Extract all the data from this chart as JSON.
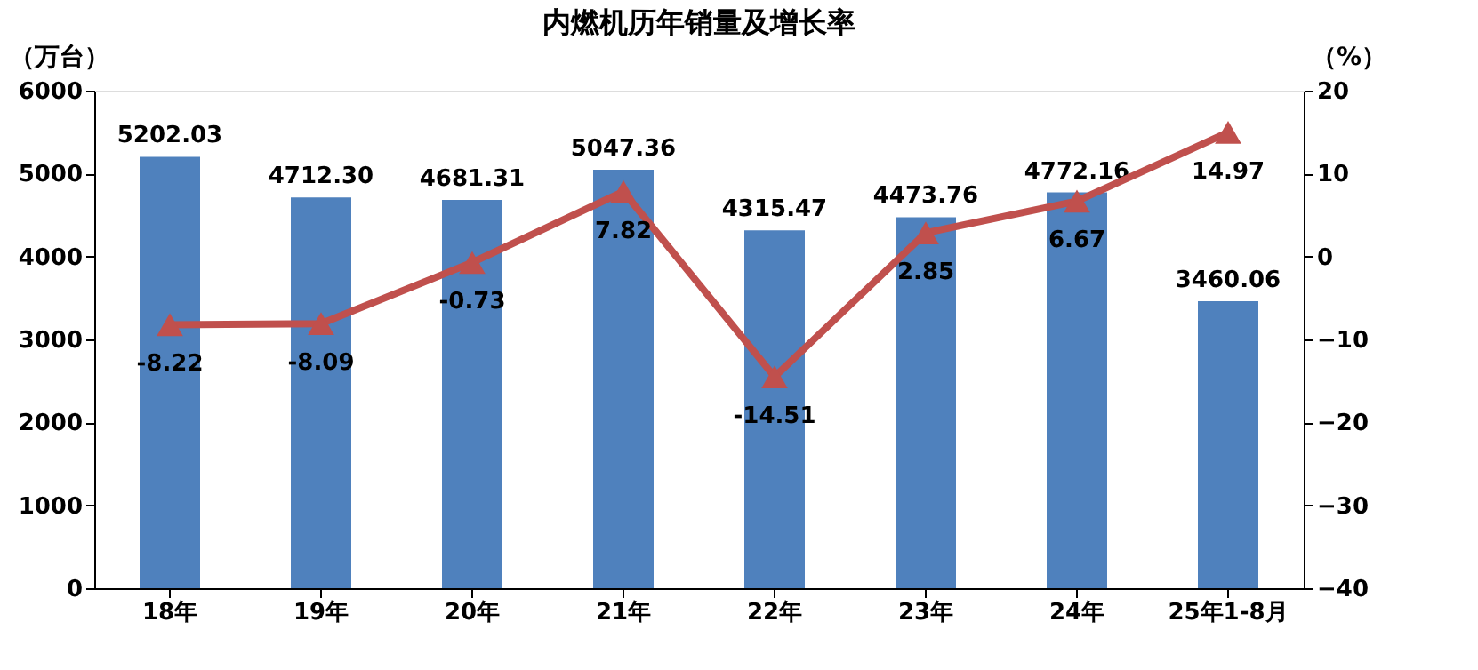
{
  "chart_data": {
    "type": "bar",
    "title": "内燃机历年销量及增长率",
    "ylabel": "（万台）",
    "y2label": "（%）",
    "categories": [
      "18年",
      "19年",
      "20年",
      "21年",
      "22年",
      "23年",
      "24年",
      "25年1-8月"
    ],
    "series": [
      {
        "color": "#4f81bd",
        "values": [
          5202.03,
          4712.3,
          4681.31,
          5047.36,
          4315.47,
          4473.76,
          4772.16,
          3460.06
        ],
        "value_labels": [
          "5202.03",
          "4712.30",
          "4681.31",
          "5047.36",
          "4315.47",
          "4473.76",
          "4772.16",
          "3460.06"
        ]
      },
      {
        "type": "line",
        "axis": "y2",
        "color": "#c0504d",
        "marker": "triangle",
        "line_style": "solid",
        "values": [
          -8.22,
          -8.09,
          -0.73,
          7.82,
          -14.51,
          2.85,
          6.67,
          14.97
        ],
        "value_labels": [
          "-8.22",
          "-8.09",
          "-0.73",
          "7.82",
          "-14.51",
          "2.85",
          "6.67",
          "14.97"
        ]
      }
    ],
    "ylim": [
      0,
      6000
    ],
    "yticks": [
      0,
      1000,
      2000,
      3000,
      4000,
      5000,
      6000
    ],
    "y2lim": [
      -40,
      20
    ],
    "y2ticks": [
      -40,
      -30,
      -20,
      -10,
      0,
      10,
      20
    ],
    "grid": false
  }
}
